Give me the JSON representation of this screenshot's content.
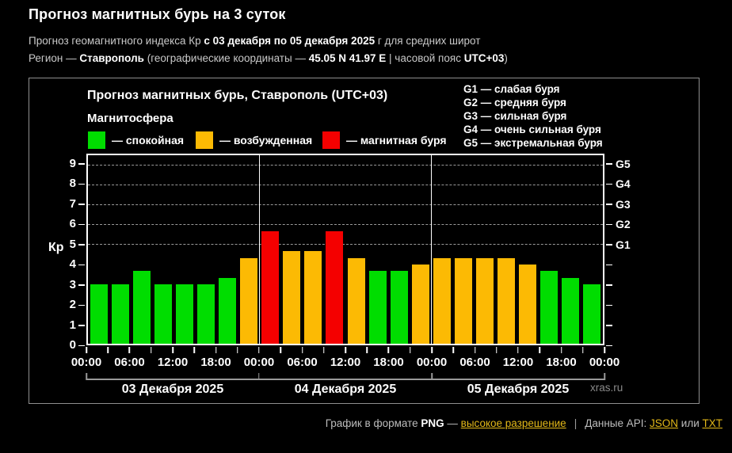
{
  "header": {
    "title": "Прогноз магнитных бурь на 3 суток",
    "line1": {
      "pre": "Прогноз геомагнитного индекса Кр ",
      "bold": "с 03 декабря по 05 декабря 2025",
      "post": " г для средних широт"
    },
    "line2": {
      "pre": "Регион — ",
      "region": "Ставрополь",
      "mid": " (географические координаты — ",
      "coords": "45.05 N 41.97 E",
      "mid2": " | часовой пояс ",
      "tz": "UTC+03",
      "post": ")"
    }
  },
  "panel": {
    "chart_title": "Прогноз магнитных бурь, Ставрополь (UTC+03)",
    "magnetosphere_label": "Магнитосфера",
    "legend": [
      {
        "label": "— спокойная",
        "state": "quiet",
        "color": "#00dd00"
      },
      {
        "label": "— возбужденная",
        "state": "excited",
        "color": "#fcba04"
      },
      {
        "label": "— магнитная буря",
        "state": "storm",
        "color": "#f40000"
      }
    ],
    "g_legend": [
      "G1 — слабая буря",
      "G2 — средняя буря",
      "G3 — сильная буря",
      "G4 — очень сильная буря",
      "G5 — экстремальная буря"
    ],
    "watermark": "xras.ru"
  },
  "chart_data": {
    "type": "bar",
    "title": "Прогноз магнитных бурь, Ставрополь (UTC+03)",
    "ylabel": "Кр",
    "ylim": [
      0,
      9
    ],
    "y_ticks": [
      0,
      1,
      2,
      3,
      4,
      5,
      6,
      7,
      8,
      9
    ],
    "grid_levels": [
      5,
      6,
      7,
      8,
      9
    ],
    "right_axis": [
      {
        "value": 5,
        "label": "G1"
      },
      {
        "value": 6,
        "label": "G2"
      },
      {
        "value": 7,
        "label": "G3"
      },
      {
        "value": 8,
        "label": "G4"
      },
      {
        "value": 9,
        "label": "G5"
      }
    ],
    "x_hour_labels": [
      "00:00",
      "06:00",
      "12:00",
      "18:00"
    ],
    "final_x_label": "00:00",
    "hours_per_bar": 3,
    "colors": {
      "quiet": "#00dd00",
      "excited": "#fcba04",
      "storm": "#f40000"
    },
    "days": [
      {
        "date": "03 Декабря 2025",
        "values": [
          3,
          3,
          3.67,
          3,
          3,
          3,
          3.33,
          4.33
        ],
        "states": [
          "quiet",
          "quiet",
          "quiet",
          "quiet",
          "quiet",
          "quiet",
          "quiet",
          "excited"
        ]
      },
      {
        "date": "04 Декабря 2025",
        "values": [
          5.67,
          4.67,
          4.67,
          5.67,
          4.33,
          3.67,
          3.67,
          4
        ],
        "states": [
          "storm",
          "excited",
          "excited",
          "storm",
          "excited",
          "quiet",
          "quiet",
          "excited"
        ]
      },
      {
        "date": "05 Декабря 2025",
        "values": [
          4.33,
          4.33,
          4.33,
          4.33,
          4,
          3.67,
          3.33,
          3
        ],
        "states": [
          "excited",
          "excited",
          "excited",
          "excited",
          "excited",
          "quiet",
          "quiet",
          "quiet"
        ]
      }
    ]
  },
  "footer": {
    "t1": "График в формате ",
    "png": "PNG",
    "t2": " — ",
    "hires_link": "высокое разрешение",
    "sep": "|",
    "t3": "Данные API: ",
    "json_link": "JSON",
    "t4": " или ",
    "txt_link": "TXT"
  }
}
